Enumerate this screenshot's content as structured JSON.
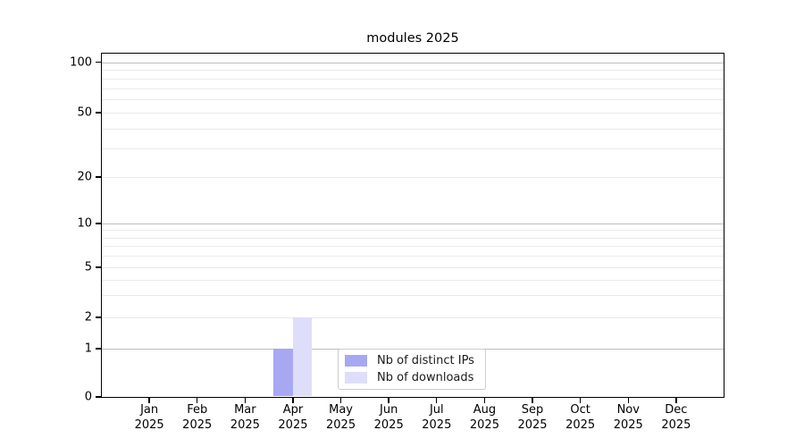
{
  "title": "modules 2025",
  "chart_data": {
    "type": "bar",
    "title": "modules 2025",
    "categories": [
      "Jan",
      "Feb",
      "Mar",
      "Apr",
      "May",
      "Jun",
      "Jul",
      "Aug",
      "Sep",
      "Oct",
      "Nov",
      "Dec"
    ],
    "category_year": "2025",
    "series": [
      {
        "name": "Nb of distinct IPs",
        "color": "#a7a7f2",
        "values": [
          0,
          0,
          0,
          1,
          0,
          0,
          0,
          0,
          0,
          0,
          0,
          0
        ]
      },
      {
        "name": "Nb of downloads",
        "color": "#dedefa",
        "values": [
          0,
          0,
          0,
          2,
          0,
          0,
          0,
          0,
          0,
          0,
          0,
          0
        ]
      }
    ],
    "yticks": [
      0,
      1,
      2,
      5,
      10,
      20,
      50,
      100
    ],
    "minor_yticks": [
      3,
      4,
      6,
      7,
      8,
      9,
      30,
      40,
      60,
      70,
      80,
      90
    ],
    "decade_yticks": [
      1,
      10,
      100
    ],
    "ylim": [
      0,
      100
    ],
    "yscale": "log-like (linear below 1)",
    "grid": true,
    "legend_position": "lower center"
  },
  "colors": {
    "background": "#ffffff",
    "frame": "#000000",
    "decade_grid": "#bdbdbd",
    "minor_grid": "#eaeaea",
    "legend_border": "#cccccc",
    "text": "#000000"
  }
}
